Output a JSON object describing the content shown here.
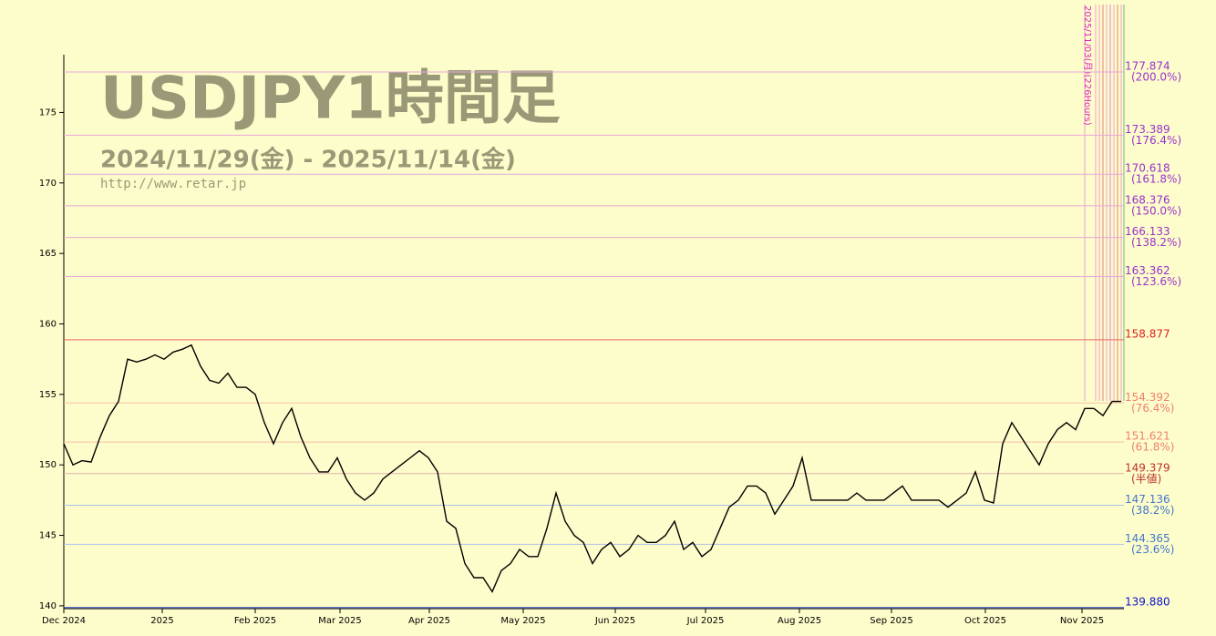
{
  "chart_data": {
    "type": "line",
    "title": "USDJPY1時間足",
    "subtitle": "2024/11/29(金) - 2025/11/14(金)",
    "source": "http://www.retar.jp",
    "annotation": "2025/11/03(月)(226Hours)",
    "series": [
      {
        "color": "#000000",
        "values": [
          151.5,
          150,
          150.3,
          150.2,
          152,
          153.5,
          154.5,
          157.5,
          157.3,
          157.5,
          157.8,
          157.5,
          158,
          158.2,
          158.5,
          157,
          156,
          155.8,
          156.5,
          155.5,
          155.5,
          155,
          153,
          151.5,
          153,
          154,
          152,
          150.5,
          149.5,
          149.5,
          150.5,
          149,
          148,
          147.5,
          148,
          149,
          149.5,
          150,
          150.5,
          151,
          150.5,
          149.5,
          146,
          145.5,
          143,
          142,
          142,
          141,
          142.5,
          143,
          144,
          143.5,
          143.5,
          145.5,
          148,
          146,
          145,
          144.5,
          143,
          144,
          144.5,
          143.5,
          144,
          145,
          144.5,
          144.5,
          145,
          146,
          144,
          144.5,
          143.5,
          144,
          145.5,
          147,
          147.5,
          148.5,
          148.5,
          148,
          146.5,
          147.5,
          148.5,
          150.5,
          147.5,
          147.5,
          147.5,
          147.5,
          147.5,
          148,
          147.5,
          147.5,
          147.5,
          148,
          148.5,
          147.5,
          147.5,
          147.5,
          147.5,
          147,
          147.5,
          148,
          149.5,
          147.5,
          147.3,
          151.5,
          153,
          152,
          151,
          150,
          151.5,
          152.5,
          153,
          152.5,
          154,
          154,
          153.5,
          154.5,
          154.5
        ]
      }
    ],
    "xlim": [
      0,
      116.3
    ],
    "xticks": [
      {
        "value": 0,
        "label": "Dec 2024"
      },
      {
        "value": 10.8,
        "label": "2025"
      },
      {
        "value": 21,
        "label": "Feb 2025"
      },
      {
        "value": 30.3,
        "label": "Mar 2025"
      },
      {
        "value": 40.1,
        "label": "Apr 2025"
      },
      {
        "value": 50.4,
        "label": "May 2025"
      },
      {
        "value": 60.5,
        "label": "Jun 2025"
      },
      {
        "value": 70.4,
        "label": "Jul 2025"
      },
      {
        "value": 80.7,
        "label": "Aug 2025"
      },
      {
        "value": 90.8,
        "label": "Sep 2025"
      },
      {
        "value": 101.1,
        "label": "Oct 2025"
      },
      {
        "value": 111.7,
        "label": "Nov 2025"
      }
    ],
    "ylim": [
      139.8,
      179.1
    ],
    "yticks": [
      140,
      145,
      150,
      155,
      160,
      165,
      170,
      175
    ],
    "levels": [
      {
        "price": 177.874,
        "ratio": "(200.0%)",
        "color": "#9933cc",
        "line": "#e8a8d8"
      },
      {
        "price": 173.389,
        "ratio": "(176.4%)",
        "color": "#9933cc",
        "line": "#e8a8d8"
      },
      {
        "price": 170.618,
        "ratio": "(161.8%)",
        "color": "#9933cc",
        "line": "#e8a8d8"
      },
      {
        "price": 168.376,
        "ratio": "(150.0%)",
        "color": "#9933cc",
        "line": "#e8a8d8"
      },
      {
        "price": 166.133,
        "ratio": "(138.2%)",
        "color": "#9933cc",
        "line": "#e8a8d8"
      },
      {
        "price": 163.362,
        "ratio": "(123.6%)",
        "color": "#9933cc",
        "line": "#e8a8d8"
      },
      {
        "price": 158.877,
        "color": "#dd2222",
        "line": "#ee6666"
      },
      {
        "price": 154.392,
        "ratio": "(76.4%)",
        "color": "#f08070",
        "line": "#f8c0a8"
      },
      {
        "price": 151.621,
        "ratio": "(61.8%)",
        "color": "#f08070",
        "line": "#f8c0a8"
      },
      {
        "price": 149.379,
        "ratio": "(半値)",
        "color": "#c03030",
        "line": "#e8b0b0"
      },
      {
        "price": 147.136,
        "ratio": "(38.2%)",
        "color": "#4477cc",
        "line": "#b0c0e8"
      },
      {
        "price": 144.365,
        "ratio": "(23.6%)",
        "color": "#4477cc",
        "line": "#b0c0e8"
      },
      {
        "price": 139.88,
        "price_label": "139.880",
        "color": "#1111cc",
        "line": "#3344cc"
      }
    ]
  }
}
